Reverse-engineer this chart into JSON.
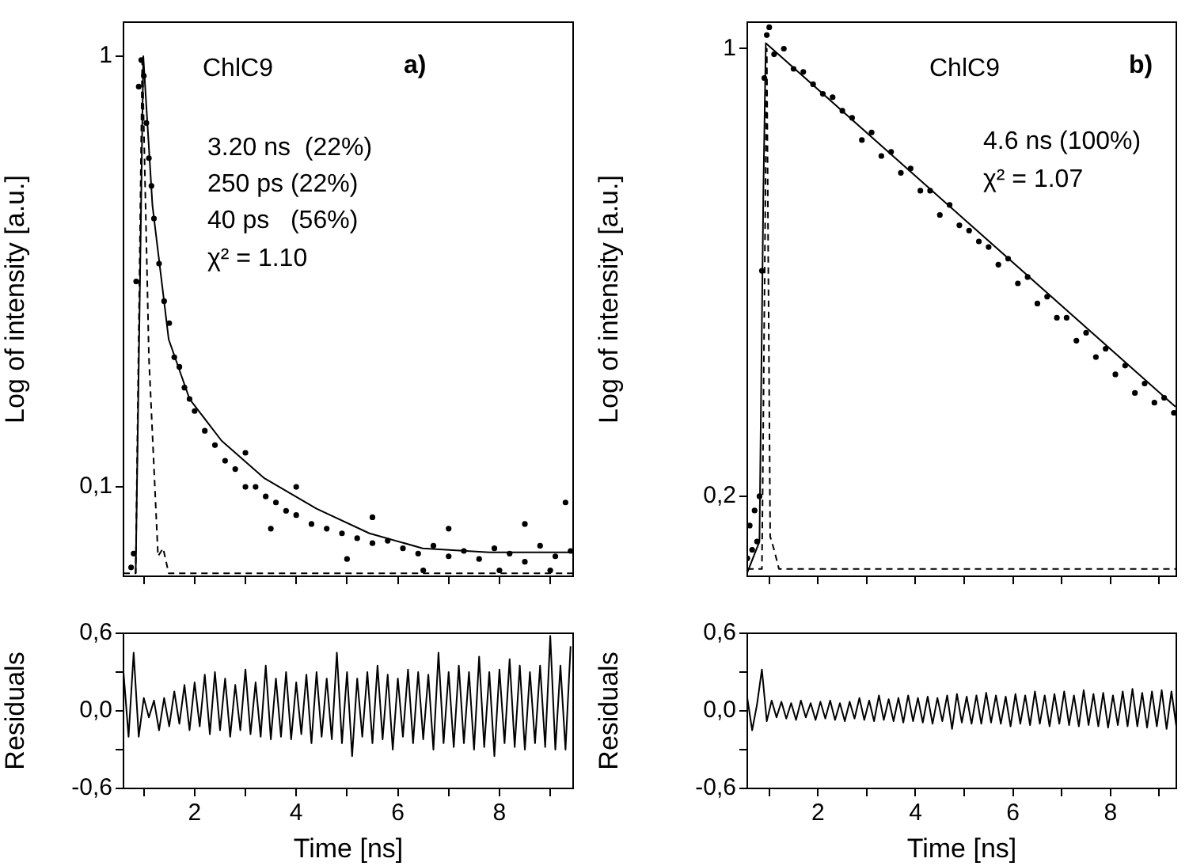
{
  "chart_data": [
    {
      "type": "scatter",
      "ylabel": "Log of intensity [a.u.]",
      "log": "y",
      "xlim": [
        0.6,
        9.45
      ],
      "ylim": [
        0.062,
        1.2
      ],
      "xticks": [
        {
          "value": 1,
          "label": null
        },
        2,
        {
          "value": 3,
          "label": null
        },
        4,
        {
          "value": 5,
          "label": null
        },
        6,
        {
          "value": 7,
          "label": null
        },
        8,
        {
          "value": 9,
          "label": null
        }
      ],
      "yticks": [
        {
          "value": 0.1,
          "label": "0,1"
        },
        1
      ],
      "tick_labels": "y",
      "annotations": [
        "ChlC9",
        "a)",
        "3.20 ns  (22%)",
        "250 ps (22%)",
        "40 ps   (56%)",
        "χ² = 1.10"
      ],
      "series": [
        {
          "color": "#000000",
          "marker": "circle",
          "x": [
            0.75,
            0.8,
            0.85,
            0.9,
            0.95,
            1.0,
            1.05,
            1.1,
            1.15,
            1.2,
            1.3,
            1.4,
            1.5,
            1.6,
            1.7,
            1.8,
            1.9,
            2.0,
            2.2,
            2.4,
            2.6,
            2.8,
            3.0,
            3.2,
            3.4,
            3.6,
            3.8,
            4.0,
            4.3,
            4.6,
            4.9,
            5.2,
            5.5,
            5.8,
            6.1,
            6.4,
            6.7,
            7.0,
            7.3,
            7.6,
            7.9,
            8.2,
            8.5,
            8.8,
            9.1,
            9.4,
            3.0,
            4.0,
            5.5,
            7.0,
            8.5,
            9.3,
            3.5,
            5.0,
            6.5,
            8.0,
            9.0
          ],
          "values": [
            0.065,
            0.07,
            0.3,
            0.85,
            0.98,
            0.9,
            0.7,
            0.58,
            0.5,
            0.42,
            0.33,
            0.27,
            0.24,
            0.2,
            0.19,
            0.17,
            0.16,
            0.15,
            0.135,
            0.125,
            0.115,
            0.11,
            0.1,
            0.1,
            0.095,
            0.092,
            0.088,
            0.086,
            0.082,
            0.08,
            0.078,
            0.076,
            0.074,
            0.075,
            0.072,
            0.07,
            0.073,
            0.069,
            0.071,
            0.068,
            0.072,
            0.07,
            0.067,
            0.073,
            0.069,
            0.071,
            0.12,
            0.1,
            0.085,
            0.08,
            0.082,
            0.092,
            0.08,
            0.068,
            0.064,
            0.064,
            0.064
          ]
        },
        {
          "type": "line",
          "color": "#000000",
          "marker": "none",
          "line_style": "solid",
          "x": [
            0.84,
            0.99,
            1.17,
            1.49,
            1.9,
            2.53,
            3.36,
            4.4,
            5.44,
            6.49,
            7.8,
            9.4
          ],
          "values": [
            0.063,
            1,
            0.45,
            0.22,
            0.16,
            0.128,
            0.105,
            0.089,
            0.078,
            0.072,
            0.0705,
            0.0705
          ]
        },
        {
          "type": "line",
          "color": "#000000",
          "marker": "none",
          "line_style": "dashed",
          "x": [
            0.6,
            0.84,
            0.97,
            1.1,
            1.28,
            1.38,
            1.49,
            1.6,
            9.45
          ],
          "values": [
            0.063,
            0.063,
            1,
            0.2,
            0.069,
            0.072,
            0.063,
            0.063,
            0.063
          ]
        }
      ]
    },
    {
      "type": "line",
      "xlabel": "Time [ns]",
      "ylabel": "Residuals",
      "xlim": [
        0.6,
        9.45
      ],
      "ylim": [
        -0.6,
        0.6
      ],
      "xticks": [
        {
          "value": 1,
          "label": null
        },
        {
          "value": 2,
          "label": "2"
        },
        {
          "value": 3,
          "label": null
        },
        {
          "value": 4,
          "label": "4"
        },
        {
          "value": 5,
          "label": null
        },
        {
          "value": 6,
          "label": "6"
        },
        {
          "value": 7,
          "label": null
        },
        {
          "value": 8,
          "label": "8"
        },
        {
          "value": 9,
          "label": null
        }
      ],
      "yticks": [
        {
          "value": -0.6,
          "label": "-0,6"
        },
        {
          "value": -0.3,
          "label": null
        },
        {
          "value": 0,
          "label": "0,0"
        },
        {
          "value": 0.3,
          "label": null
        },
        {
          "value": 0.6,
          "label": "0,6"
        }
      ],
      "marker": "none",
      "series": [
        {
          "color": "#000000",
          "line_style": "solid",
          "x": [
            0.6,
            0.7,
            0.8,
            0.9,
            1.0,
            1.1,
            1.2,
            1.3,
            1.4,
            1.5,
            1.6,
            1.7,
            1.8,
            1.9,
            2.0,
            2.1,
            2.2,
            2.3,
            2.4,
            2.5,
            2.6,
            2.7,
            2.8,
            2.9,
            3.0,
            3.1,
            3.2,
            3.3,
            3.4,
            3.5,
            3.6,
            3.7,
            3.8,
            3.9,
            4.0,
            4.1,
            4.2,
            4.3,
            4.4,
            4.5,
            4.6,
            4.7,
            4.8,
            4.9,
            5.0,
            5.1,
            5.2,
            5.3,
            5.4,
            5.5,
            5.6,
            5.7,
            5.8,
            5.9,
            6.0,
            6.1,
            6.2,
            6.3,
            6.4,
            6.5,
            6.6,
            6.7,
            6.8,
            6.9,
            7.0,
            7.1,
            7.2,
            7.3,
            7.4,
            7.5,
            7.6,
            7.7,
            7.8,
            7.9,
            8.0,
            8.1,
            8.2,
            8.3,
            8.4,
            8.5,
            8.6,
            8.7,
            8.8,
            8.9,
            9.0,
            9.1,
            9.2,
            9.3,
            9.4
          ],
          "values": [
            0.3,
            -0.2,
            0.45,
            -0.2,
            0.1,
            -0.05,
            0.08,
            -0.15,
            0.1,
            -0.12,
            0.15,
            -0.1,
            0.2,
            -0.15,
            0.22,
            -0.12,
            0.28,
            -0.18,
            0.3,
            -0.15,
            0.25,
            -0.2,
            0.2,
            -0.15,
            0.32,
            -0.18,
            0.22,
            -0.2,
            0.35,
            -0.22,
            0.25,
            -0.2,
            0.3,
            -0.22,
            0.22,
            -0.18,
            0.28,
            -0.25,
            0.3,
            -0.2,
            0.25,
            -0.22,
            0.45,
            -0.25,
            0.3,
            -0.35,
            0.25,
            -0.2,
            0.3,
            -0.25,
            0.35,
            -0.22,
            0.28,
            -0.3,
            0.25,
            -0.2,
            0.32,
            -0.25,
            0.3,
            -0.22,
            0.28,
            -0.3,
            0.45,
            -0.25,
            0.3,
            -0.28,
            0.35,
            -0.25,
            0.3,
            -0.3,
            0.42,
            -0.28,
            0.3,
            -0.35,
            0.32,
            -0.25,
            0.4,
            -0.28,
            0.35,
            -0.3,
            0.3,
            -0.25,
            0.35,
            -0.28,
            0.58,
            -0.3,
            0.35,
            -0.3,
            0.5
          ]
        }
      ]
    },
    {
      "type": "scatter",
      "ylabel": "Log of intensity [a.u.]",
      "log": "y",
      "xlim": [
        0.55,
        9.35
      ],
      "ylim": [
        0.15,
        1.1
      ],
      "xticks": [
        {
          "value": 1,
          "label": null
        },
        2,
        {
          "value": 3,
          "label": null
        },
        4,
        {
          "value": 5,
          "label": null
        },
        6,
        {
          "value": 7,
          "label": null
        },
        8,
        {
          "value": 9,
          "label": null
        }
      ],
      "yticks": [
        {
          "value": 0.2,
          "label": "0,2"
        },
        1
      ],
      "tick_labels": "y",
      "annotations": [
        "ChlC9",
        "b)",
        "4.6 ns (100%)",
        "χ² = 1.07"
      ],
      "series": [
        {
          "color": "#000000",
          "marker": "circle",
          "x": [
            0.55,
            0.6,
            0.65,
            0.7,
            0.75,
            0.8,
            0.85,
            0.9,
            0.95,
            1.0,
            1.1,
            1.3,
            1.5,
            1.7,
            1.9,
            2.1,
            2.3,
            2.5,
            2.7,
            2.9,
            3.1,
            3.3,
            3.5,
            3.7,
            3.9,
            4.1,
            4.3,
            4.5,
            4.7,
            4.9,
            5.1,
            5.3,
            5.5,
            5.7,
            5.9,
            6.1,
            6.3,
            6.5,
            6.7,
            6.9,
            7.1,
            7.3,
            7.5,
            7.7,
            7.9,
            8.1,
            8.3,
            8.5,
            8.7,
            8.9,
            9.1,
            9.3
          ],
          "values": [
            0.16,
            0.18,
            0.165,
            0.19,
            0.17,
            0.2,
            0.45,
            0.9,
            1.05,
            1.08,
            0.98,
            1.0,
            0.93,
            0.92,
            0.88,
            0.85,
            0.84,
            0.8,
            0.78,
            0.72,
            0.74,
            0.68,
            0.69,
            0.64,
            0.65,
            0.6,
            0.6,
            0.55,
            0.57,
            0.53,
            0.52,
            0.5,
            0.49,
            0.46,
            0.47,
            0.43,
            0.44,
            0.4,
            0.41,
            0.38,
            0.38,
            0.35,
            0.36,
            0.33,
            0.34,
            0.31,
            0.32,
            0.29,
            0.3,
            0.28,
            0.285,
            0.27
          ]
        },
        {
          "type": "line",
          "color": "#000000",
          "marker": "none",
          "line_style": "solid",
          "x": [
            0.55,
            0.8,
            0.88,
            0.93,
            9.33
          ],
          "values": [
            0.152,
            0.17,
            0.6,
            1.02,
            0.276
          ]
        },
        {
          "type": "line",
          "color": "#000000",
          "marker": "none",
          "line_style": "dashed",
          "x": [
            0.55,
            0.85,
            0.95,
            1.02,
            1.1,
            1.2,
            9.35
          ],
          "values": [
            0.154,
            0.154,
            1,
            0.173,
            0.165,
            0.154,
            0.154
          ]
        }
      ]
    },
    {
      "type": "line",
      "xlabel": "Time [ns]",
      "ylabel": "Residuals",
      "xlim": [
        0.55,
        9.35
      ],
      "ylim": [
        -0.6,
        0.6
      ],
      "xticks": [
        {
          "value": 1,
          "label": null
        },
        {
          "value": 2,
          "label": "2"
        },
        {
          "value": 3,
          "label": null
        },
        {
          "value": 4,
          "label": "4"
        },
        {
          "value": 5,
          "label": null
        },
        {
          "value": 6,
          "label": "6"
        },
        {
          "value": 7,
          "label": null
        },
        {
          "value": 8,
          "label": "8"
        },
        {
          "value": 9,
          "label": null
        }
      ],
      "yticks": [
        {
          "value": -0.6,
          "label": "-0,6"
        },
        {
          "value": -0.3,
          "label": null
        },
        {
          "value": 0,
          "label": "0,0"
        },
        {
          "value": 0.3,
          "label": null
        },
        {
          "value": 0.6,
          "label": "0,6"
        }
      ],
      "marker": "none",
      "series": [
        {
          "color": "#000000",
          "line_style": "solid",
          "x": [
            0.55,
            0.65,
            0.75,
            0.85,
            0.95,
            1.05,
            1.15,
            1.25,
            1.35,
            1.45,
            1.55,
            1.65,
            1.75,
            1.85,
            1.95,
            2.05,
            2.15,
            2.25,
            2.35,
            2.45,
            2.55,
            2.65,
            2.75,
            2.85,
            2.95,
            3.05,
            3.15,
            3.25,
            3.35,
            3.45,
            3.55,
            3.65,
            3.75,
            3.85,
            3.95,
            4.05,
            4.15,
            4.25,
            4.35,
            4.45,
            4.55,
            4.65,
            4.75,
            4.85,
            4.95,
            5.05,
            5.15,
            5.25,
            5.35,
            5.45,
            5.55,
            5.65,
            5.75,
            5.85,
            5.95,
            6.05,
            6.15,
            6.25,
            6.35,
            6.45,
            6.55,
            6.65,
            6.75,
            6.85,
            6.95,
            7.05,
            7.15,
            7.25,
            7.35,
            7.45,
            7.55,
            7.65,
            7.75,
            7.85,
            7.95,
            8.05,
            8.15,
            8.25,
            8.35,
            8.45,
            8.55,
            8.65,
            8.75,
            8.85,
            8.95,
            9.05,
            9.15,
            9.25,
            9.35
          ],
          "values": [
            0.1,
            -0.15,
            0.05,
            0.32,
            -0.08,
            0.08,
            -0.05,
            0.07,
            -0.06,
            0.06,
            -0.07,
            0.08,
            -0.05,
            0.06,
            -0.07,
            0.07,
            -0.06,
            0.08,
            -0.07,
            0.06,
            -0.08,
            0.07,
            -0.06,
            0.1,
            -0.07,
            0.08,
            -0.08,
            0.12,
            -0.07,
            0.09,
            -0.08,
            0.1,
            -0.09,
            0.12,
            -0.08,
            0.1,
            -0.09,
            0.11,
            -0.1,
            0.1,
            -0.08,
            0.12,
            -0.14,
            0.13,
            -0.09,
            0.11,
            -0.1,
            0.12,
            -0.1,
            0.14,
            -0.09,
            0.12,
            -0.1,
            0.11,
            -0.12,
            0.13,
            -0.1,
            0.12,
            -0.11,
            0.15,
            -0.1,
            0.12,
            -0.12,
            0.13,
            -0.1,
            0.15,
            -0.11,
            0.12,
            -0.12,
            0.16,
            -0.11,
            0.13,
            -0.12,
            0.14,
            -0.13,
            0.12,
            -0.11,
            0.15,
            -0.12,
            0.17,
            -0.12,
            0.14,
            -0.13,
            0.15,
            -0.12,
            0.16,
            -0.14,
            0.15,
            -0.12
          ]
        }
      ]
    }
  ]
}
